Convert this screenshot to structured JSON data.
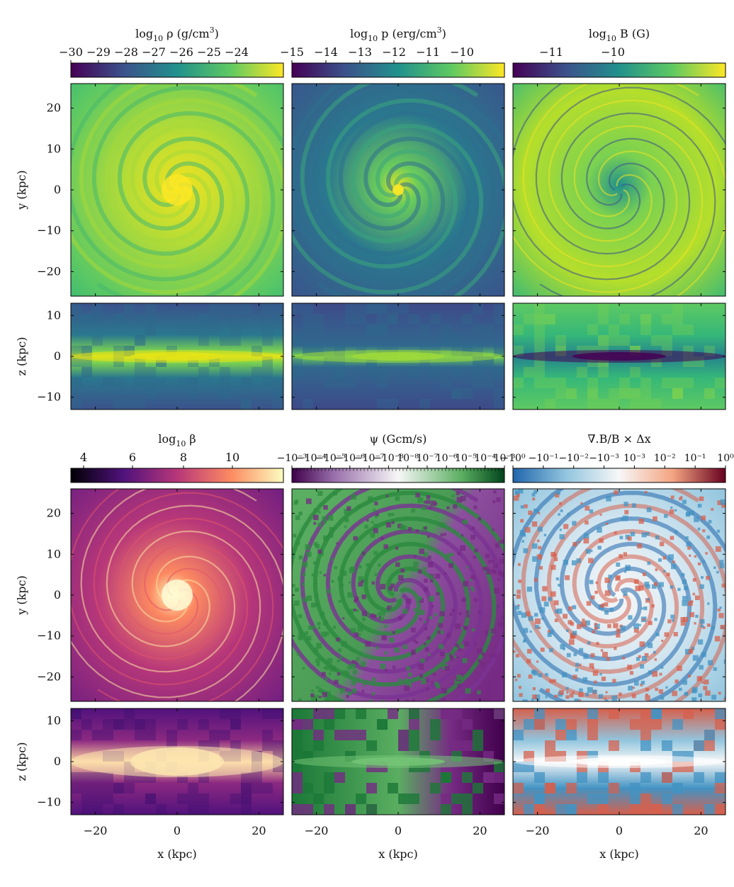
{
  "figure": {
    "colorbars": [
      {
        "id": "density",
        "title_parts": [
          "log",
          "10",
          " ρ (g/cm",
          "3",
          ")"
        ],
        "ticks": [
          "−30",
          "−29",
          "−28",
          "−27",
          "−26",
          "−25",
          "−24"
        ],
        "colormap": "viridis"
      },
      {
        "id": "pressure",
        "title_parts": [
          "log",
          "10",
          " p (erg/cm",
          "3",
          ")"
        ],
        "ticks": [
          "−15",
          "−14",
          "−13",
          "−12",
          "−11",
          "−10"
        ],
        "colormap": "viridis"
      },
      {
        "id": "bfield",
        "title_parts": [
          "log",
          "10",
          " B (G)",
          "",
          ""
        ],
        "ticks": [
          "−11",
          "−10"
        ],
        "colormap": "viridis"
      },
      {
        "id": "beta",
        "title_parts": [
          "log",
          "10",
          " β",
          "",
          ""
        ],
        "ticks": [
          "4",
          "6",
          "8",
          "10"
        ],
        "colormap": "magma"
      },
      {
        "id": "psi",
        "title_parts": [
          "ψ (Gcm/s)",
          "",
          "",
          "",
          ""
        ],
        "ticks": [
          "−10⁻³",
          "−10⁻⁴",
          "−10⁻⁵",
          "−10⁻⁶",
          "−10⁻⁷",
          "−10⁻⁸",
          "10⁻⁸",
          "10⁻⁷",
          "10⁻⁶",
          "10⁻⁵",
          "10⁻⁴",
          "10⁻³"
        ],
        "colormap": "PRGn"
      },
      {
        "id": "divb",
        "title_parts": [
          "∇.B/B × Δx",
          "",
          "",
          "",
          ""
        ],
        "ticks": [
          "−10⁰",
          "−10⁻¹",
          "−10⁻²",
          "−10⁻³",
          "10⁻³",
          "10⁻²",
          "10⁻¹",
          "10⁰"
        ],
        "colormap": "RdBu_r"
      }
    ],
    "axes": {
      "y_label": "y (kpc)",
      "z_label": "z (kpc)",
      "x_label": "x (kpc)",
      "y_ticks": [
        "20",
        "10",
        "0",
        "−10",
        "−20"
      ],
      "z_ticks": [
        "10",
        "0",
        "−10"
      ],
      "x_ticks": [
        "−20",
        "0",
        "20"
      ]
    }
  },
  "chart_data": {
    "type": "heatmap",
    "panels": [
      {
        "quantity": "density",
        "view": "face-on",
        "xlim": [
          -26,
          26
        ],
        "ylim": [
          -26,
          26
        ]
      },
      {
        "quantity": "pressure",
        "view": "face-on",
        "xlim": [
          -26,
          26
        ],
        "ylim": [
          -26,
          26
        ]
      },
      {
        "quantity": "bfield",
        "view": "face-on",
        "xlim": [
          -26,
          26
        ],
        "ylim": [
          -26,
          26
        ]
      },
      {
        "quantity": "density",
        "view": "edge-on",
        "xlim": [
          -26,
          26
        ],
        "zlim": [
          -13,
          13
        ]
      },
      {
        "quantity": "pressure",
        "view": "edge-on",
        "xlim": [
          -26,
          26
        ],
        "zlim": [
          -13,
          13
        ]
      },
      {
        "quantity": "bfield",
        "view": "edge-on",
        "xlim": [
          -26,
          26
        ],
        "zlim": [
          -13,
          13
        ]
      },
      {
        "quantity": "beta",
        "view": "face-on",
        "xlim": [
          -26,
          26
        ],
        "ylim": [
          -26,
          26
        ]
      },
      {
        "quantity": "psi",
        "view": "face-on",
        "xlim": [
          -26,
          26
        ],
        "ylim": [
          -26,
          26
        ]
      },
      {
        "quantity": "divb",
        "view": "face-on",
        "xlim": [
          -26,
          26
        ],
        "ylim": [
          -26,
          26
        ]
      },
      {
        "quantity": "beta",
        "view": "edge-on",
        "xlim": [
          -26,
          26
        ],
        "zlim": [
          -13,
          13
        ]
      },
      {
        "quantity": "psi",
        "view": "edge-on",
        "xlim": [
          -26,
          26
        ],
        "zlim": [
          -13,
          13
        ]
      },
      {
        "quantity": "divb",
        "view": "edge-on",
        "xlim": [
          -26,
          26
        ],
        "zlim": [
          -13,
          13
        ]
      }
    ]
  }
}
